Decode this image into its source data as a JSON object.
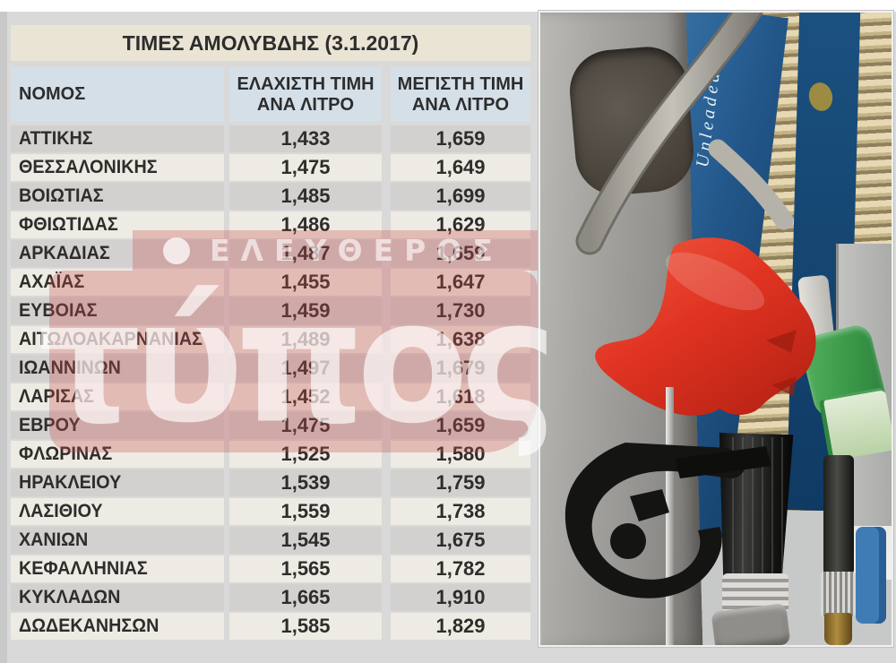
{
  "chart_data": {
    "type": "table",
    "title": "ΤΙΜΕΣ ΑΜΟΛΥΒΔΗΣ (3.1.2017)",
    "columns": [
      "ΝΟΜΟΣ",
      "ΕΛΑΧΙΣΤΗ ΤΙΜΗ ΑΝΑ ΛΙΤΡΟ",
      "ΜΕΓΙΣΤΗ ΤΙΜΗ ΑΝΑ ΛΙΤΡΟ"
    ],
    "rows": [
      [
        "ΑΤΤΙΚΗΣ",
        "1,433",
        "1,659"
      ],
      [
        "ΘΕΣΣΑΛΟΝΙΚΗΣ",
        "1,475",
        "1,649"
      ],
      [
        "ΒΟΙΩΤΙΑΣ",
        "1,485",
        "1,699"
      ],
      [
        "ΦΘΙΩΤΙΔΑΣ",
        "1,486",
        "1,629"
      ],
      [
        "ΑΡΚΑΔΙΑΣ",
        "1,487",
        "1,659"
      ],
      [
        "ΑΧΑΪΑΣ",
        "1,455",
        "1,647"
      ],
      [
        "ΕΥΒΟΙΑΣ",
        "1,459",
        "1,730"
      ],
      [
        "ΑΙΤΩΛΟΑΚΑΡΝΑΝΙΑΣ",
        "1,489",
        "1,638"
      ],
      [
        "ΙΩΑΝΝΙΝΩΝ",
        "1,497",
        "1,679"
      ],
      [
        "ΛΑΡΙΣΑΣ",
        "1,452",
        "1,618"
      ],
      [
        "ΕΒΡΟΥ",
        "1,475",
        "1,659"
      ],
      [
        "ΦΛΩΡΙΝΑΣ",
        "1,525",
        "1,580"
      ],
      [
        "ΗΡΑΚΛΕΙΟΥ",
        "1,539",
        "1,759"
      ],
      [
        "ΛΑΣΙΘΙΟΥ",
        "1,559",
        "1,738"
      ],
      [
        "ΧΑΝΙΩΝ",
        "1,545",
        "1,675"
      ],
      [
        "ΚΕΦΑΛΛΗΝΙΑΣ",
        "1,565",
        "1,782"
      ],
      [
        "ΚΥΚΛΑΔΩΝ",
        "1,665",
        "1,910"
      ],
      [
        "ΔΩΔΕΚΑΝΗΣΩΝ",
        "1,585",
        "1,829"
      ]
    ]
  },
  "watermark": {
    "bullet": "●",
    "line1": "ΕΛΕΥΘΕΡΟΣ",
    "line2": "τύπος"
  },
  "photo": {
    "panel_text": "Unleaded 95"
  },
  "colors": {
    "page_grey": "#d9d9d9",
    "title_beige": "#e9e4d4",
    "header_blue": "#d5dfe8",
    "row_grey": "#d2d1cf",
    "row_cream": "#edebe3",
    "text_dark": "#2d2d2d",
    "watermark_red": "#cb4b4b",
    "red_nozzle": "#e23b2a",
    "green_nozzle": "#3f9e4c",
    "blue_panel": "#1d5a8c",
    "navy_band": "#123f6e",
    "shutter_beige": "#d8c9a3",
    "pillar_grey": "#a09e9a",
    "brass": "#a8842f"
  }
}
